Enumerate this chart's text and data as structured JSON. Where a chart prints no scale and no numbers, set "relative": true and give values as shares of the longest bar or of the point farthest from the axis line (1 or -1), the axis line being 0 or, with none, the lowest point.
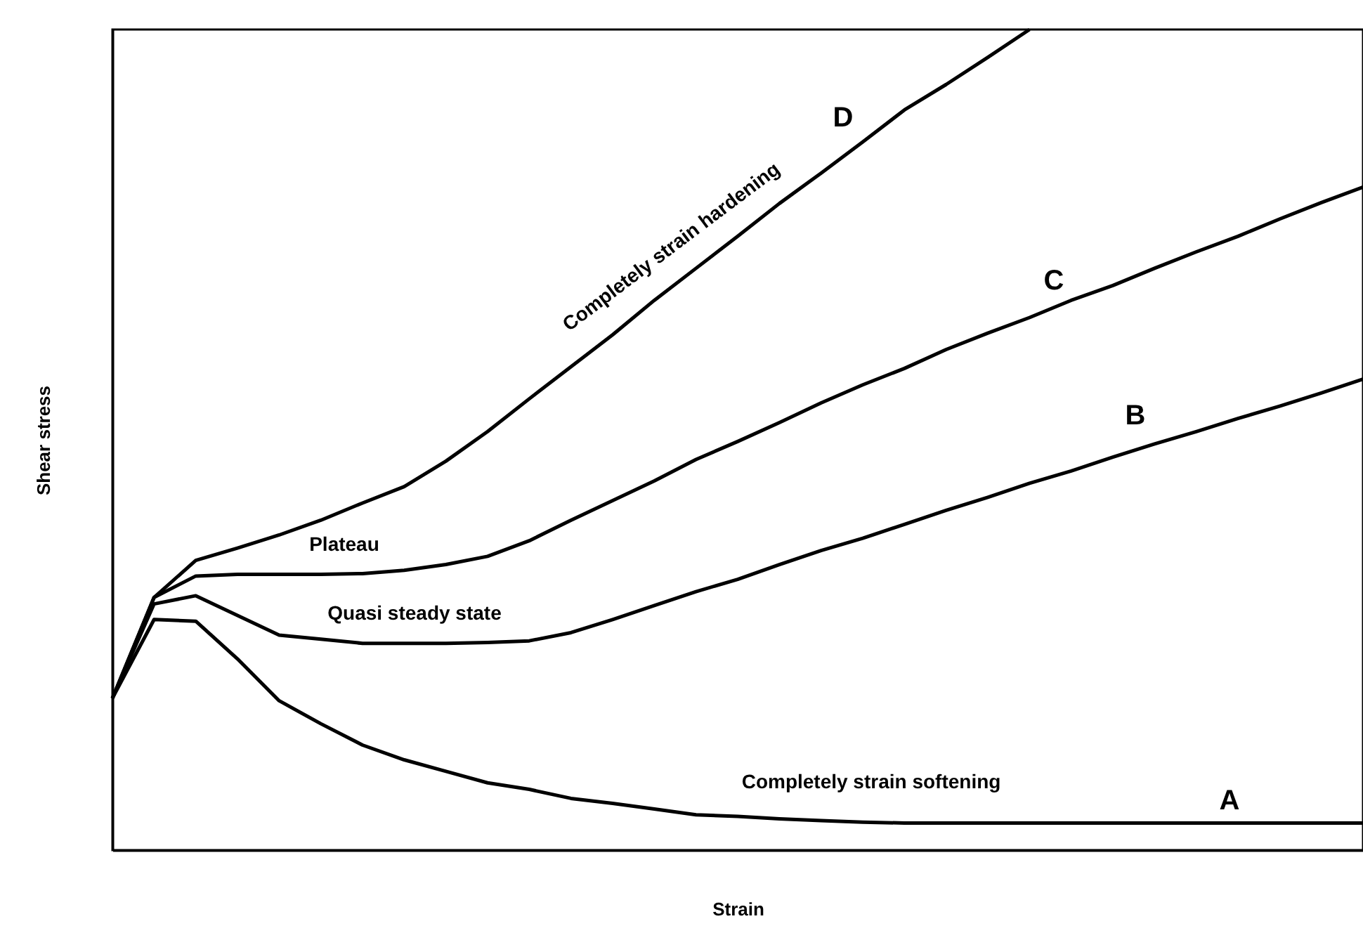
{
  "chart_data": {
    "type": "line",
    "relative": true,
    "xlabel": "Strain",
    "ylabel": "Shear stress",
    "legend": false,
    "grid": false,
    "marker": "none",
    "line_style": "solid",
    "categories": [
      null,
      null,
      null,
      null,
      null,
      null,
      null,
      null,
      null,
      null,
      null,
      null,
      null,
      null,
      null,
      null,
      null,
      null,
      null,
      null,
      null,
      null,
      null,
      null,
      null,
      null,
      null,
      null,
      null,
      null,
      null
    ],
    "series": [
      {
        "color": "#000000",
        "values": [
          0.185,
          0.281,
          0.279,
          0.233,
          0.182,
          0.154,
          0.128,
          0.11,
          0.096,
          0.082,
          0.074,
          0.063,
          0.057,
          0.05,
          0.043,
          0.041,
          0.038,
          0.036,
          0.034,
          0.033,
          0.033,
          0.033,
          0.033,
          0.033,
          0.033,
          0.033,
          0.033,
          0.033,
          0.033,
          0.033,
          0.033
        ]
      },
      {
        "color": "#000000",
        "values": [
          0.185,
          0.3,
          0.31,
          0.286,
          0.262,
          0.257,
          0.252,
          0.252,
          0.252,
          0.253,
          0.255,
          0.265,
          0.281,
          0.298,
          0.315,
          0.33,
          0.348,
          0.365,
          0.38,
          0.397,
          0.414,
          0.43,
          0.447,
          0.462,
          0.479,
          0.495,
          0.51,
          0.526,
          0.541,
          0.557,
          0.574
        ]
      },
      {
        "color": "#000000",
        "values": [
          0.185,
          0.308,
          0.334,
          0.336,
          0.336,
          0.336,
          0.337,
          0.341,
          0.348,
          0.358,
          0.377,
          0.402,
          0.426,
          0.45,
          0.476,
          0.498,
          0.521,
          0.545,
          0.567,
          0.587,
          0.61,
          0.63,
          0.649,
          0.67,
          0.688,
          0.709,
          0.729,
          0.748,
          0.769,
          0.789,
          0.808
        ]
      },
      {
        "color": "#000000",
        "values": [
          0.185,
          0.308,
          0.353,
          0.368,
          0.384,
          0.402,
          0.423,
          0.443,
          0.474,
          0.51,
          0.55,
          0.589,
          0.628,
          0.67,
          0.709,
          0.748,
          0.788,
          0.825,
          0.863,
          0.902,
          0.933,
          0.966,
          1,
          null,
          null,
          null,
          null,
          null,
          null,
          null,
          null
        ]
      }
    ],
    "annotations": [
      "A",
      "B",
      "C",
      "D",
      "Plateau",
      "Quasi steady state",
      "Completely strain softening",
      "Completely strain hardening"
    ]
  }
}
